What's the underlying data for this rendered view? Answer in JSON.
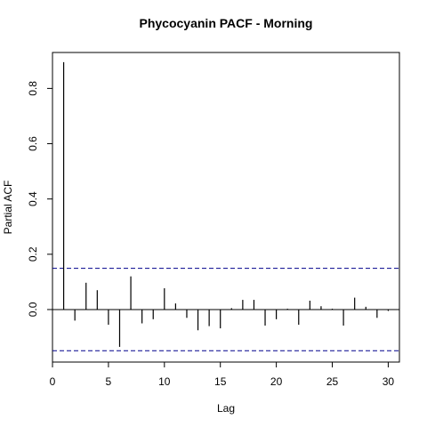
{
  "chart_data": {
    "type": "bar",
    "title": "Phycocyanin PACF - Morning",
    "xlabel": "Lag",
    "ylabel": "Partial ACF",
    "xlim": [
      0,
      31
    ],
    "ylim": [
      -0.19,
      0.93
    ],
    "x_ticks": [
      0,
      5,
      10,
      15,
      20,
      25,
      30
    ],
    "y_ticks": [
      0.0,
      0.2,
      0.4,
      0.6,
      0.8
    ],
    "x_tick_labels": [
      "0",
      "5",
      "10",
      "15",
      "20",
      "25",
      "30"
    ],
    "y_tick_labels": [
      "0.0",
      "0.2",
      "0.4",
      "0.6",
      "0.8"
    ],
    "confidence_bound": 0.149,
    "colors": {
      "spike": "#000000",
      "bound": "#00008B",
      "zero_line": "#000000"
    },
    "grid": false,
    "lags": [
      1,
      2,
      3,
      4,
      5,
      6,
      7,
      8,
      9,
      10,
      11,
      12,
      13,
      14,
      15,
      16,
      17,
      18,
      19,
      20,
      21,
      22,
      23,
      24,
      25,
      26,
      27,
      28,
      29,
      30
    ],
    "values": [
      0.895,
      -0.04,
      0.097,
      0.07,
      -0.055,
      -0.135,
      0.12,
      -0.05,
      -0.035,
      0.077,
      0.022,
      -0.03,
      -0.075,
      -0.06,
      -0.068,
      0.005,
      0.035,
      0.035,
      -0.058,
      -0.035,
      0.003,
      -0.055,
      0.032,
      0.012,
      0.003,
      -0.058,
      0.043,
      0.01,
      -0.03,
      -0.005
    ]
  }
}
